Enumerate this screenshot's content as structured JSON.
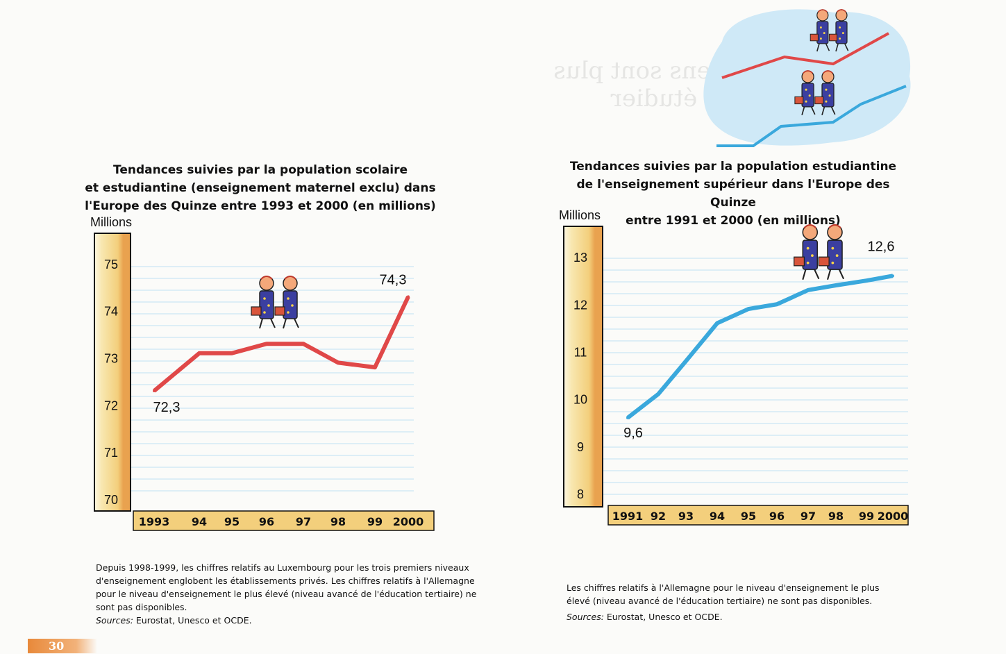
{
  "page_number": "30",
  "chart_data": [
    {
      "type": "line",
      "title_lines": [
        "Tendances suivies par la population scolaire",
        "et estudiantine (enseignement maternel exclu) dans",
        "l'Europe des Quinze entre 1993 et 2000 (en millions)"
      ],
      "ylabel": "Millions",
      "xlabel": "",
      "ylim": [
        69.75,
        75.5
      ],
      "yticks": [
        "70",
        "71",
        "72",
        "73",
        "74",
        "75"
      ],
      "x_tick_labels": [
        "1993",
        "94",
        "95",
        "96",
        "97",
        "98",
        "99",
        "2000"
      ],
      "series": [
        {
          "color": "#e04848",
          "values": [
            72.3,
            73.1,
            73.1,
            73.3,
            73.3,
            72.9,
            72.8,
            74.3
          ]
        }
      ],
      "data_labels": [
        {
          "year_index": 0,
          "text": "72,3"
        },
        {
          "year_index": 7,
          "text": "74,3"
        }
      ],
      "grid": true,
      "legend": "none",
      "note_lines": [
        "Depuis 1998-1999, les chiffres relatifs au Luxembourg pour les trois premiers niveaux",
        "d'enseignement englobent les établissements privés. Les chiffres relatifs à l'Allemagne",
        "pour le niveau d'enseignement le plus élevé (niveau avancé de l'éducation tertiaire) ne",
        "sont pas disponibles."
      ],
      "sources_label": "Sources:",
      "sources_text": " Eurostat, Unesco et OCDE."
    },
    {
      "type": "line",
      "title_lines": [
        "Tendances suivies par la population estudiantine",
        "de l'enseignement supérieur dans l'Europe des Quinze",
        "entre 1991 et 2000 (en millions)"
      ],
      "ylabel": "Millions",
      "xlabel": "",
      "ylim": [
        7.75,
        13.5
      ],
      "yticks": [
        "8",
        "9",
        "10",
        "11",
        "12",
        "13"
      ],
      "x_tick_labels": [
        "1991",
        "92",
        "93",
        "94",
        "95",
        "96",
        "97",
        "98",
        "99",
        "2000"
      ],
      "series": [
        {
          "color": "#3aa8dc",
          "values": [
            9.6,
            10.1,
            10.8,
            11.6,
            11.9,
            12.0,
            12.3,
            12.4,
            12.5,
            12.6
          ]
        }
      ],
      "data_labels": [
        {
          "year_index": 0,
          "text": "9,6"
        },
        {
          "year_index": 9,
          "text": "12,6"
        }
      ],
      "grid": true,
      "legend": "none",
      "note_lines": [
        "Les chiffres relatifs à l'Allemagne pour le niveau d'enseignement le plus",
        "élevé (niveau avancé de l'éducation tertiaire) ne sont pas disponibles."
      ],
      "sources_label": "Sources:",
      "sources_text": " Eurostat, Unesco et OCDE."
    }
  ],
  "colors": {
    "axis_bar_light": "#f8e7b0",
    "axis_bar_mid": "#f3cf7c",
    "axis_bar_dark": "#e9a24f",
    "grid": "#bfe1f2",
    "deco_cloud": "#cfe9f7"
  },
  "icons": [
    "children-walking-icon",
    "children-walking-icon",
    "children-walking-icon",
    "children-walking-icon"
  ]
}
